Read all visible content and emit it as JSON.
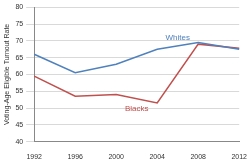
{
  "chart_data": {
    "type": "line",
    "y_label": "Voting-Age Eligible Turnout Rate",
    "categories": [
      "1992",
      "1996",
      "2000",
      "2004",
      "2008",
      "2012"
    ],
    "series": [
      {
        "name": "Whites",
        "color": "#4f81bd",
        "values": [
          66,
          60.5,
          63,
          67.5,
          69.5,
          67.5
        ]
      },
      {
        "name": "Blacks",
        "color": "#c0504d",
        "values": [
          59.5,
          53.5,
          54,
          51.5,
          69,
          67.8
        ]
      }
    ],
    "ylim": [
      40,
      80
    ],
    "yticks": [
      40,
      45,
      50,
      55,
      60,
      65,
      70,
      75,
      80
    ],
    "grid": true
  }
}
